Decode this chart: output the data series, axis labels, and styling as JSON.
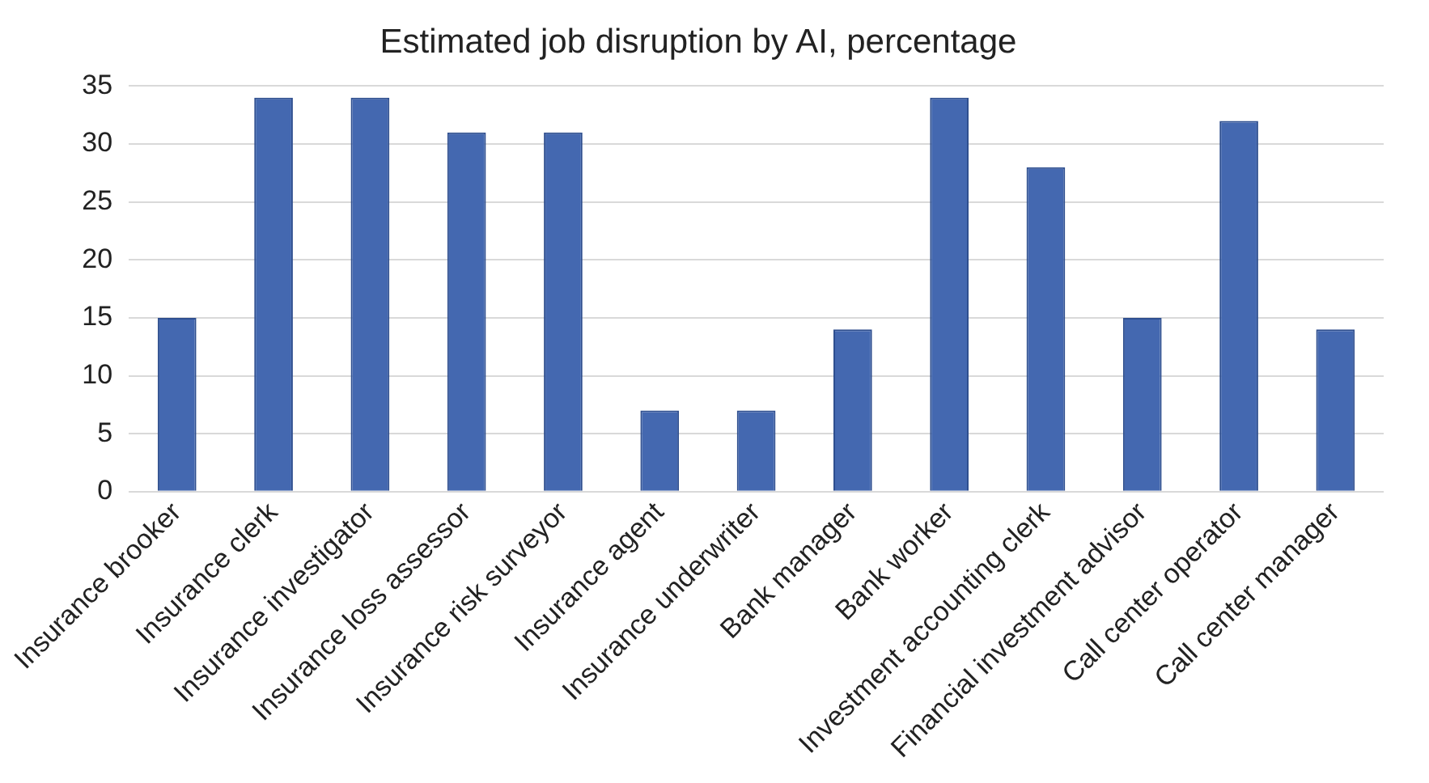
{
  "chart_data": {
    "type": "bar",
    "title": "Estimated job disruption by AI, percentage",
    "categories": [
      "Insurance brooker",
      "Insurance clerk",
      "Insurance investigator",
      "Insurance loss assessor",
      "Insurance risk surveyor",
      "Insurance agent",
      "Insurance underwriter",
      "Bank manager",
      "Bank worker",
      "Investment accounting clerk",
      "Financial investment advisor",
      "Call center operator",
      "Call center manager"
    ],
    "values": [
      15,
      34,
      34,
      31,
      31,
      7,
      7,
      14,
      34,
      28,
      15,
      32,
      14
    ],
    "color": "#4468b0",
    "ylim": [
      0,
      35
    ],
    "yticks": [
      0,
      5,
      10,
      15,
      20,
      25,
      30,
      35
    ],
    "grid": "y"
  }
}
